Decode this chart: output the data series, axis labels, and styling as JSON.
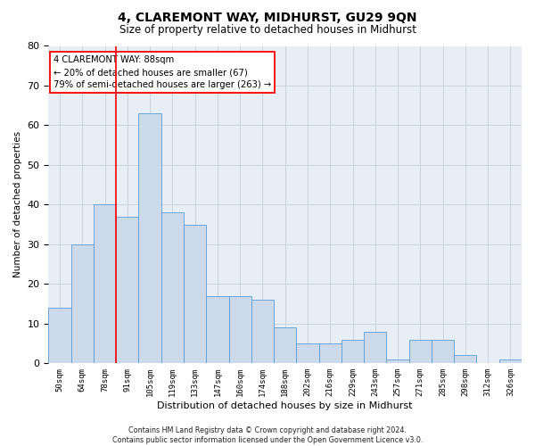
{
  "title": "4, CLAREMONT WAY, MIDHURST, GU29 9QN",
  "subtitle": "Size of property relative to detached houses in Midhurst",
  "xlabel": "Distribution of detached houses by size in Midhurst",
  "ylabel": "Number of detached properties",
  "bar_labels": [
    "50sqm",
    "64sqm",
    "78sqm",
    "91sqm",
    "105sqm",
    "119sqm",
    "133sqm",
    "147sqm",
    "160sqm",
    "174sqm",
    "188sqm",
    "202sqm",
    "216sqm",
    "229sqm",
    "243sqm",
    "257sqm",
    "271sqm",
    "285sqm",
    "298sqm",
    "312sqm",
    "326sqm"
  ],
  "bar_values": [
    14,
    30,
    40,
    37,
    63,
    38,
    35,
    17,
    17,
    16,
    9,
    5,
    5,
    6,
    8,
    1,
    6,
    6,
    2,
    0,
    1
  ],
  "bar_color": "#ccd9e8",
  "bar_edge_color": "#5b9bd5",
  "grid_color": "#c8d4e0",
  "background_color": "#e8eef5",
  "red_line_x": 2.5,
  "annotation_text": "4 CLAREMONT WAY: 88sqm\n← 20% of detached houses are smaller (67)\n79% of semi-detached houses are larger (263) →",
  "annotation_box_color": "white",
  "annotation_box_edge_color": "red",
  "footnote": "Contains HM Land Registry data © Crown copyright and database right 2024.\nContains public sector information licensed under the Open Government Licence v3.0.",
  "ylim": [
    0,
    80
  ],
  "yticks": [
    0,
    10,
    20,
    30,
    40,
    50,
    60,
    70,
    80
  ],
  "title_fontsize": 10,
  "subtitle_fontsize": 8.5
}
